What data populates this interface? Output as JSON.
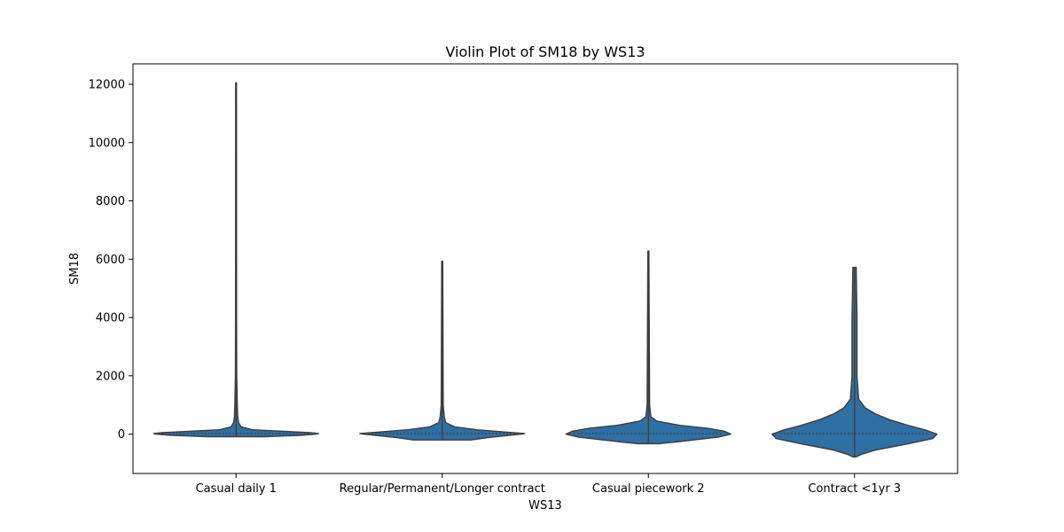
{
  "chart_data": {
    "type": "violin",
    "title": "Violin Plot of SM18 by WS13",
    "xlabel": "WS13",
    "ylabel": "SM18",
    "ylim": [
      -1350,
      12700
    ],
    "yticks": [
      0,
      2000,
      4000,
      6000,
      8000,
      10000,
      12000
    ],
    "grid": false,
    "categories": [
      "Casual daily 1",
      "Regular/Permanent/Longer contract",
      "Casual piecework 2",
      "Contract <1yr 3"
    ],
    "violins": [
      {
        "category": "Casual daily 1",
        "min": -90,
        "max": 12050,
        "median": 20,
        "profile": [
          [
            -90,
            0.34
          ],
          [
            -40,
            0.8
          ],
          [
            0,
            0.97
          ],
          [
            20,
            1.0
          ],
          [
            50,
            0.9
          ],
          [
            100,
            0.55
          ],
          [
            150,
            0.2
          ],
          [
            250,
            0.06
          ],
          [
            400,
            0.03
          ],
          [
            600,
            0.02
          ],
          [
            1000,
            0.015
          ],
          [
            2000,
            0.008
          ],
          [
            4000,
            0.006
          ],
          [
            12050,
            0.005
          ]
        ]
      },
      {
        "category": "Regular/Permanent/Longer contract",
        "min": -200,
        "max": 5930,
        "median": 20,
        "profile": [
          [
            -200,
            0.35
          ],
          [
            -120,
            0.55
          ],
          [
            -40,
            0.82
          ],
          [
            0,
            0.96
          ],
          [
            20,
            1.0
          ],
          [
            80,
            0.72
          ],
          [
            150,
            0.42
          ],
          [
            250,
            0.15
          ],
          [
            400,
            0.04
          ],
          [
            600,
            0.025
          ],
          [
            1000,
            0.012
          ],
          [
            5930,
            0.006
          ]
        ]
      },
      {
        "category": "Casual piecework 2",
        "min": -330,
        "max": 6280,
        "median": 20,
        "profile": [
          [
            -330,
            0.12
          ],
          [
            -280,
            0.3
          ],
          [
            -200,
            0.55
          ],
          [
            -100,
            0.85
          ],
          [
            0,
            1.0
          ],
          [
            100,
            0.92
          ],
          [
            200,
            0.72
          ],
          [
            300,
            0.38
          ],
          [
            450,
            0.1
          ],
          [
            600,
            0.03
          ],
          [
            1000,
            0.015
          ],
          [
            6280,
            0.006
          ]
        ]
      },
      {
        "category": "Contract <1yr 3",
        "min": -780,
        "max": 5720,
        "median": 20,
        "profile": [
          [
            -780,
            0.02
          ],
          [
            -700,
            0.08
          ],
          [
            -550,
            0.25
          ],
          [
            -350,
            0.62
          ],
          [
            -150,
            0.95
          ],
          [
            0,
            1.0
          ],
          [
            150,
            0.85
          ],
          [
            300,
            0.65
          ],
          [
            500,
            0.42
          ],
          [
            700,
            0.25
          ],
          [
            900,
            0.13
          ],
          [
            1200,
            0.05
          ],
          [
            2000,
            0.03
          ],
          [
            4000,
            0.03
          ],
          [
            5720,
            0.02
          ]
        ]
      }
    ],
    "fill_color": "#2e6fa4",
    "edge_color": "#3d3d3d"
  }
}
